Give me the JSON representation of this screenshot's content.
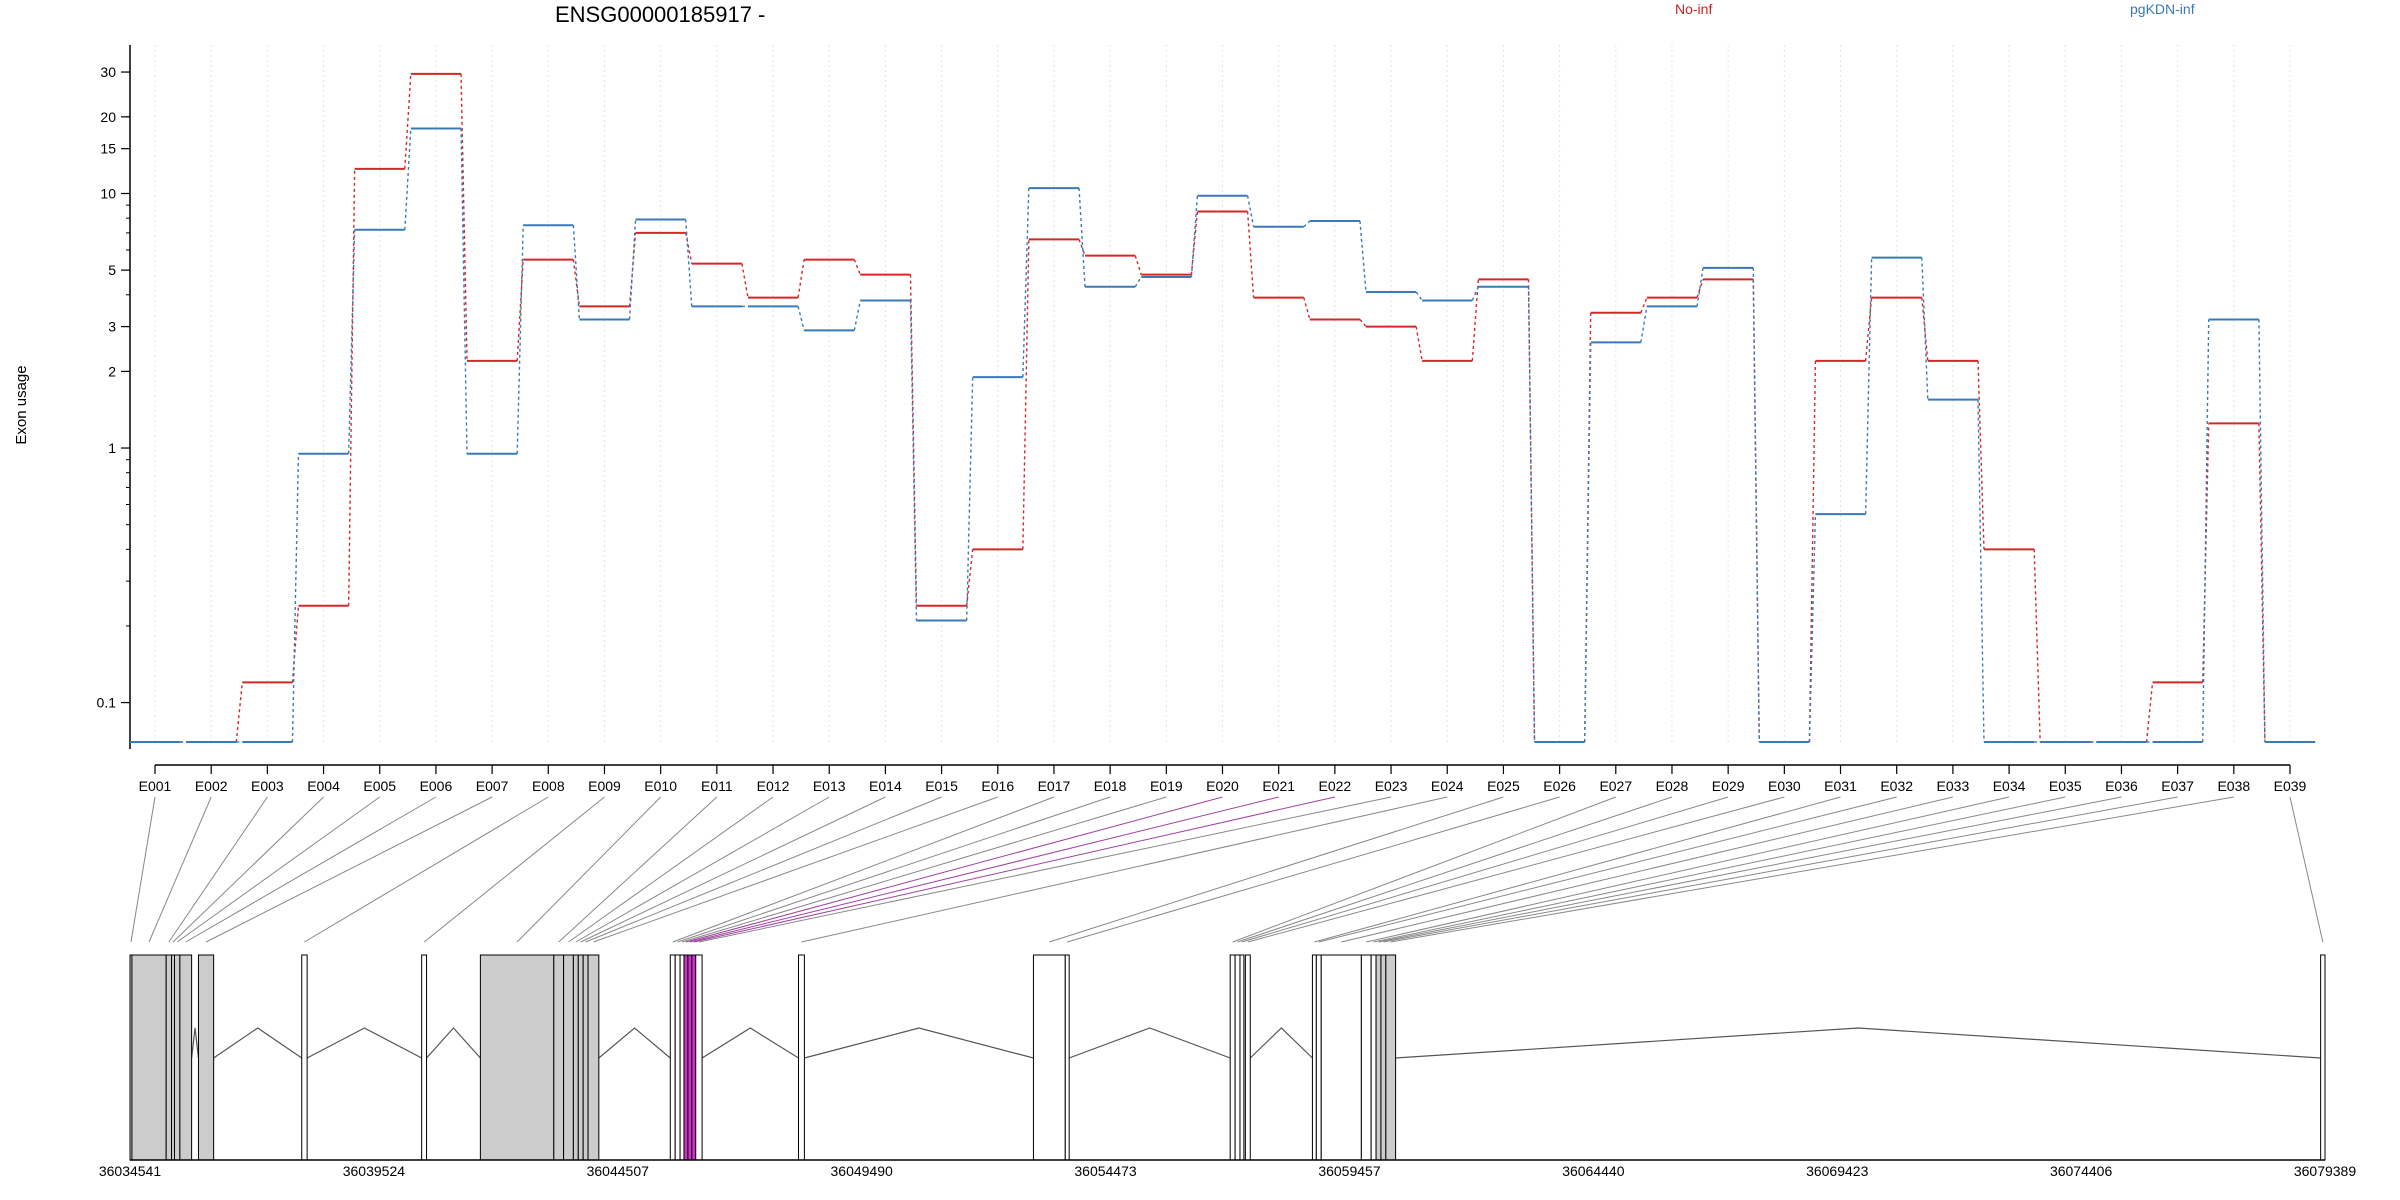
{
  "chart_data": {
    "type": "line",
    "title": "ENSG00000185917 -",
    "ylabel": "Exon usage",
    "xlabel": "",
    "y_scale": "log",
    "ylim": [
      0.07,
      35
    ],
    "y_ticks": [
      0.1,
      1,
      2,
      3,
      5,
      10,
      15,
      20,
      30
    ],
    "grid": "vertical dotted lines at exon centers",
    "legend_placement": "top",
    "categories": [
      "E001",
      "E002",
      "E003",
      "E004",
      "E005",
      "E006",
      "E007",
      "E008",
      "E009",
      "E010",
      "E011",
      "E012",
      "E013",
      "E014",
      "E015",
      "E016",
      "E017",
      "E018",
      "E019",
      "E020",
      "E021",
      "E022",
      "E023",
      "E024",
      "E025",
      "E026",
      "E027",
      "E028",
      "E029",
      "E030",
      "E031",
      "E032",
      "E033",
      "E034",
      "E035",
      "E036",
      "E037",
      "E038",
      "E039"
    ],
    "series": [
      {
        "name": "No-inf",
        "color": "#d62728",
        "values": [
          0.07,
          0.07,
          0.12,
          0.24,
          12.5,
          29.5,
          2.2,
          5.5,
          3.6,
          7.0,
          5.3,
          3.9,
          5.5,
          4.8,
          0.24,
          0.4,
          6.6,
          5.7,
          4.8,
          8.5,
          3.9,
          3.2,
          3.0,
          2.2,
          4.6,
          0.07,
          3.4,
          3.9,
          4.6,
          0.07,
          2.2,
          3.9,
          2.2,
          0.4,
          0.07,
          0.07,
          0.12,
          1.25,
          0.07
        ]
      },
      {
        "name": "pgKDN-inf",
        "color": "#3a7ab8",
        "values": [
          0.07,
          0.07,
          0.07,
          0.95,
          7.2,
          18.0,
          0.95,
          7.5,
          3.2,
          7.9,
          3.6,
          3.6,
          2.9,
          3.8,
          0.21,
          1.9,
          10.5,
          4.3,
          4.7,
          9.8,
          7.4,
          7.8,
          4.1,
          3.8,
          4.3,
          0.07,
          2.6,
          3.6,
          5.1,
          0.07,
          0.55,
          5.6,
          1.55,
          0.07,
          0.07,
          0.07,
          0.07,
          3.2,
          0.07
        ]
      }
    ],
    "genomic_axis": {
      "tick_labels": [
        "36034541",
        "36039524",
        "36044507",
        "36049490",
        "36054473",
        "36059457",
        "36064440",
        "36069423",
        "36074406",
        "36079389"
      ],
      "range": [
        36034541,
        36079389
      ]
    },
    "gene_model_exons": [
      {
        "id": "E001",
        "start": 36034541,
        "end": 36034580,
        "fill": "#cccccc"
      },
      {
        "id": "E002",
        "start": 36034580,
        "end": 36035280,
        "fill": "#cccccc"
      },
      {
        "id": "E003",
        "start": 36035280,
        "end": 36035390,
        "fill": "#cccccc"
      },
      {
        "id": "E004",
        "start": 36035390,
        "end": 36035450,
        "fill": "#cccccc"
      },
      {
        "id": "E005",
        "start": 36035450,
        "end": 36035560,
        "fill": "#cccccc"
      },
      {
        "id": "E006",
        "start": 36035560,
        "end": 36035800,
        "fill": "#cccccc"
      },
      {
        "id": "E007",
        "start": 36035940,
        "end": 36036250,
        "fill": "#cccccc"
      },
      {
        "id": "E008",
        "start": 36038050,
        "end": 36038160,
        "fill": "#ffffff"
      },
      {
        "id": "E009",
        "start": 36040500,
        "end": 36040600,
        "fill": "#ffffff"
      },
      {
        "id": "E010",
        "start": 36041700,
        "end": 36043200,
        "fill": "#cccccc"
      },
      {
        "id": "E011",
        "start": 36043200,
        "end": 36043400,
        "fill": "#cccccc"
      },
      {
        "id": "E012",
        "start": 36043400,
        "end": 36043600,
        "fill": "#cccccc"
      },
      {
        "id": "E013",
        "start": 36043600,
        "end": 36043700,
        "fill": "#cccccc"
      },
      {
        "id": "E014",
        "start": 36043700,
        "end": 36043800,
        "fill": "#cccccc"
      },
      {
        "id": "E015",
        "start": 36043800,
        "end": 36043900,
        "fill": "#cccccc"
      },
      {
        "id": "E016",
        "start": 36043900,
        "end": 36044120,
        "fill": "#cccccc"
      },
      {
        "id": "E017",
        "start": 36045580,
        "end": 36045680,
        "fill": "#ffffff"
      },
      {
        "id": "E018",
        "start": 36045680,
        "end": 36045780,
        "fill": "#ffffff"
      },
      {
        "id": "E019",
        "start": 36045780,
        "end": 36045860,
        "fill": "#ffffff"
      },
      {
        "id": "E020",
        "start": 36045860,
        "end": 36045940,
        "fill": "#ffffff",
        "highlight": true
      },
      {
        "id": "E021",
        "start": 36045940,
        "end": 36046020,
        "fill": "#ffffff",
        "highlight": true
      },
      {
        "id": "E022",
        "start": 36046020,
        "end": 36046100,
        "fill": "#ffffff",
        "highlight": true
      },
      {
        "id": "E023",
        "start": 36046100,
        "end": 36046230,
        "fill": "#ffffff"
      },
      {
        "id": "E024",
        "start": 36048200,
        "end": 36048320,
        "fill": "#ffffff"
      },
      {
        "id": "E025",
        "start": 36053000,
        "end": 36053650,
        "fill": "#ffffff"
      },
      {
        "id": "E026",
        "start": 36053650,
        "end": 36053730,
        "fill": "#ffffff"
      },
      {
        "id": "E027",
        "start": 36057020,
        "end": 36057120,
        "fill": "#ffffff"
      },
      {
        "id": "E028",
        "start": 36057120,
        "end": 36057220,
        "fill": "#ffffff"
      },
      {
        "id": "E029",
        "start": 36057220,
        "end": 36057300,
        "fill": "#ffffff"
      },
      {
        "id": "E030",
        "start": 36057330,
        "end": 36057430,
        "fill": "#ffffff"
      },
      {
        "id": "E031",
        "start": 36058700,
        "end": 36058780,
        "fill": "#ffffff"
      },
      {
        "id": "E032",
        "start": 36058780,
        "end": 36058880,
        "fill": "#ffffff"
      },
      {
        "id": "E033",
        "start": 36058880,
        "end": 36059700,
        "fill": "#ffffff"
      },
      {
        "id": "E034",
        "start": 36059700,
        "end": 36059900,
        "fill": "#ffffff"
      },
      {
        "id": "E035",
        "start": 36059900,
        "end": 36060000,
        "fill": "#ffffff"
      },
      {
        "id": "E036",
        "start": 36060000,
        "end": 36060100,
        "fill": "#cccccc"
      },
      {
        "id": "E037",
        "start": 36060100,
        "end": 36060200,
        "fill": "#cccccc"
      },
      {
        "id": "E038",
        "start": 36060200,
        "end": 36060400,
        "fill": "#cccccc"
      },
      {
        "id": "E039",
        "start": 36079300,
        "end": 36079389,
        "fill": "#ffffff"
      }
    ]
  }
}
